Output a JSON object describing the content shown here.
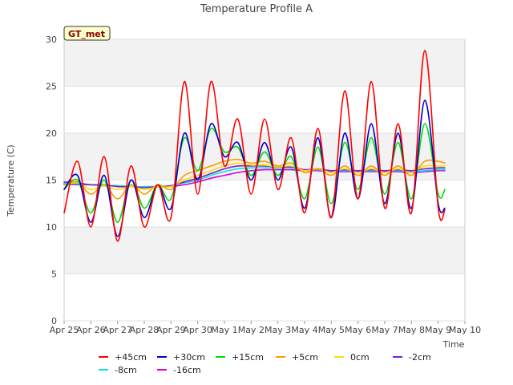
{
  "chart_data": {
    "type": "line",
    "title": "Temperature Profile A",
    "xlabel": "Time",
    "ylabel": "Temperature (C)",
    "ylim": [
      0,
      30
    ],
    "yticks": [
      0,
      5,
      10,
      15,
      20,
      25,
      30
    ],
    "x_ticks": [
      "Apr 25",
      "Apr 26",
      "Apr 27",
      "Apr 28",
      "Apr 29",
      "Apr 30",
      "May 1",
      "May 2",
      "May 3",
      "May 4",
      "May 5",
      "May 6",
      "May 7",
      "May 8",
      "May 9",
      "May 10"
    ],
    "x_values": [
      0,
      0.5,
      1,
      1.5,
      2,
      2.5,
      3,
      3.5,
      4,
      4.5,
      5,
      5.5,
      6,
      6.5,
      7,
      7.5,
      8,
      8.5,
      9,
      9.5,
      10,
      10.5,
      11,
      11.5,
      12,
      12.5,
      13,
      13.5,
      14,
      14.25
    ],
    "x_unit": "days since Apr 25",
    "badge": "GT_met",
    "grid": "horizontal bands",
    "legend_position": "bottom",
    "series": [
      {
        "name": "+45cm",
        "color": "#ff0000",
        "values": [
          11.5,
          17.0,
          10.0,
          17.5,
          8.5,
          16.5,
          10.0,
          14.5,
          11.0,
          25.5,
          13.5,
          25.5,
          16.5,
          21.5,
          13.5,
          21.5,
          14.0,
          19.5,
          11.5,
          20.5,
          11.0,
          24.5,
          13.0,
          25.5,
          12.0,
          21.0,
          11.5,
          28.8,
          12.0,
          11.8
        ]
      },
      {
        "name": "+30cm",
        "color": "#0000cc",
        "values": [
          14.0,
          15.5,
          10.5,
          15.5,
          9.0,
          15.0,
          11.0,
          14.5,
          12.0,
          20.0,
          15.0,
          21.0,
          17.5,
          19.0,
          15.0,
          19.0,
          15.0,
          18.5,
          12.0,
          19.5,
          11.0,
          20.0,
          13.0,
          21.0,
          12.5,
          20.0,
          12.0,
          23.5,
          12.5,
          12.0
        ]
      },
      {
        "name": "+15cm",
        "color": "#00dd00",
        "values": [
          14.0,
          15.0,
          11.5,
          15.0,
          10.5,
          15.0,
          12.0,
          14.5,
          13.0,
          19.5,
          16.0,
          20.5,
          18.0,
          18.5,
          15.5,
          18.0,
          15.5,
          17.5,
          13.0,
          18.5,
          12.5,
          19.0,
          14.0,
          19.5,
          13.5,
          19.0,
          13.0,
          21.0,
          13.5,
          14.0
        ]
      },
      {
        "name": "+5cm",
        "color": "#ff9900",
        "values": [
          14.5,
          14.8,
          13.5,
          14.5,
          13.0,
          14.5,
          13.5,
          14.5,
          14.0,
          15.5,
          16.0,
          16.5,
          17.0,
          17.2,
          16.8,
          17.0,
          16.5,
          16.8,
          15.8,
          16.2,
          15.5,
          16.5,
          15.5,
          16.5,
          15.5,
          16.5,
          15.5,
          17.0,
          17.0,
          16.8
        ]
      },
      {
        "name": "0cm",
        "color": "#ffdd00",
        "values": [
          14.5,
          14.7,
          14.0,
          14.4,
          14.0,
          14.3,
          14.0,
          14.3,
          14.3,
          15.0,
          15.5,
          16.0,
          16.5,
          16.8,
          16.6,
          16.6,
          16.4,
          16.5,
          16.0,
          16.2,
          15.8,
          16.2,
          15.8,
          16.2,
          15.8,
          16.2,
          15.8,
          16.5,
          16.5,
          16.5
        ]
      },
      {
        "name": "-2cm",
        "color": "#7f1fcf",
        "values": [
          14.8,
          14.7,
          14.5,
          14.5,
          14.3,
          14.3,
          14.2,
          14.3,
          14.4,
          14.8,
          15.2,
          15.7,
          16.2,
          16.5,
          16.5,
          16.5,
          16.4,
          16.4,
          16.1,
          16.2,
          16.0,
          16.1,
          16.0,
          16.1,
          16.0,
          16.1,
          16.0,
          16.2,
          16.3,
          16.3
        ]
      },
      {
        "name": "-8cm",
        "color": "#00e5e5",
        "values": [
          14.7,
          14.6,
          14.5,
          14.4,
          14.4,
          14.3,
          14.3,
          14.3,
          14.4,
          14.7,
          15.0,
          15.5,
          15.9,
          16.2,
          16.3,
          16.3,
          16.3,
          16.3,
          16.1,
          16.1,
          16.0,
          16.0,
          16.0,
          16.0,
          16.0,
          16.0,
          15.9,
          16.0,
          16.1,
          16.1
        ]
      },
      {
        "name": "-16cm",
        "color": "#dd00dd",
        "values": [
          14.6,
          14.5,
          14.5,
          14.4,
          14.4,
          14.3,
          14.3,
          14.3,
          14.3,
          14.5,
          14.8,
          15.2,
          15.5,
          15.8,
          16.0,
          16.1,
          16.1,
          16.1,
          16.0,
          16.0,
          15.9,
          15.9,
          15.9,
          15.9,
          15.9,
          15.9,
          15.8,
          15.9,
          16.0,
          16.0
        ]
      }
    ]
  }
}
